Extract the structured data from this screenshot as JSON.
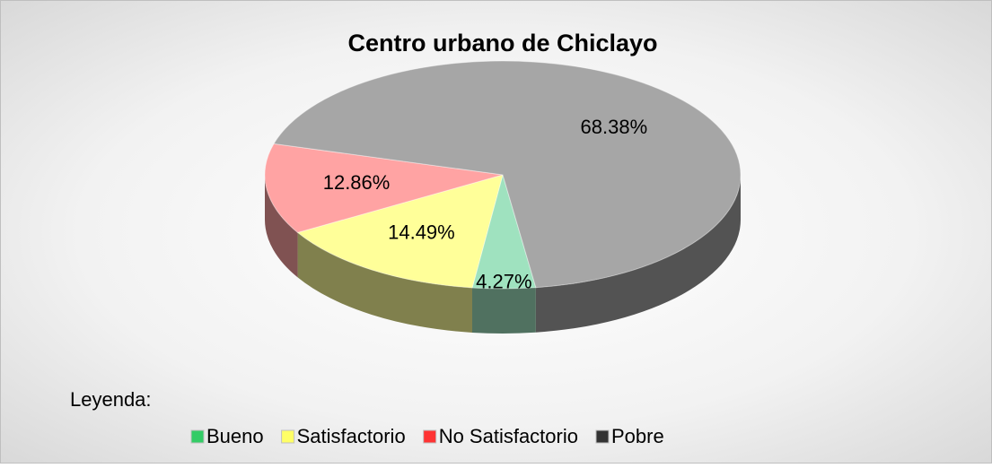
{
  "chart_data": {
    "type": "pie",
    "title": "Centro urbano de Chiclayo",
    "legend_title": "Leyenda:",
    "categories": [
      "Bueno",
      "Satisfactorio",
      "No Satisfactorio",
      "Pobre"
    ],
    "values": [
      4.27,
      14.49,
      12.86,
      68.38
    ],
    "value_labels": [
      "4.27%",
      "14.49%",
      "12.86%",
      "68.38%"
    ],
    "colors": [
      "#9fe2bf",
      "#ffff99",
      "#ffa3a3",
      "#a6a6a6"
    ],
    "legend_colors": [
      "#33cc66",
      "#ffff66",
      "#ff3333",
      "#333333"
    ],
    "legend": "bottom"
  }
}
